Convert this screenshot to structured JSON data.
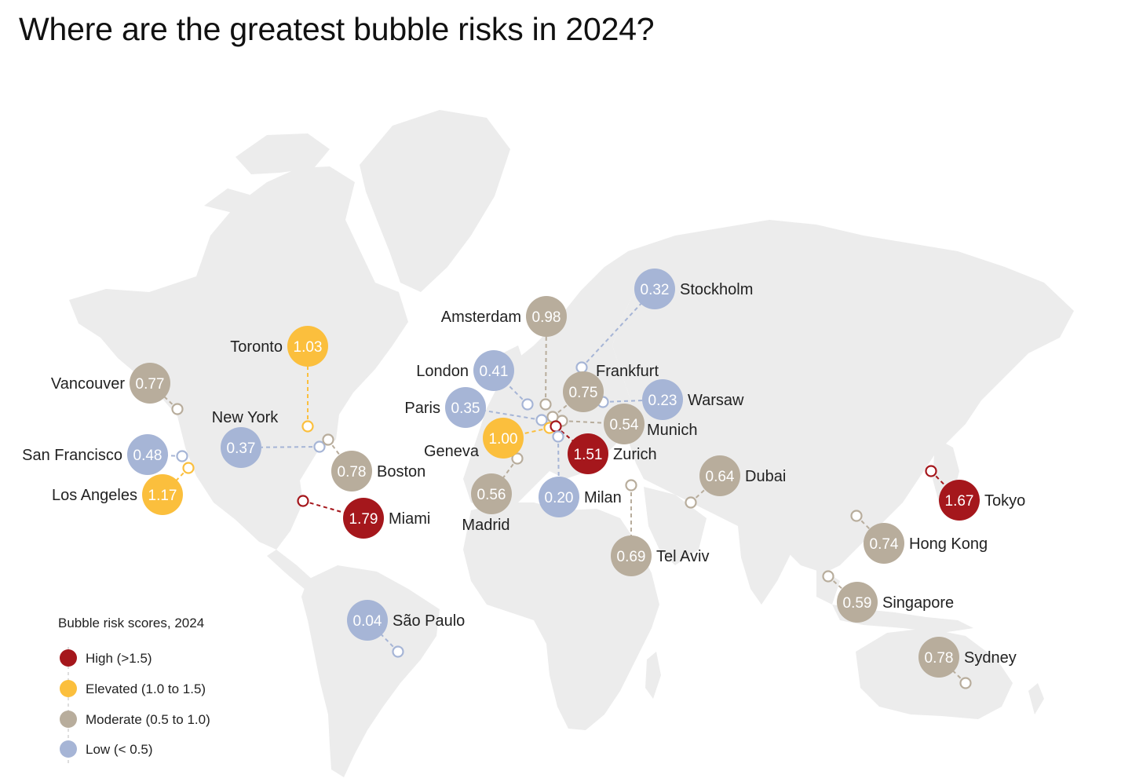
{
  "title": "Where are the greatest bubble risks in 2024?",
  "colors": {
    "high": "#a5171c",
    "elevated": "#fbbf3d",
    "moderate": "#b8ad9c",
    "low": "#a6b5d6",
    "land": "#ececec"
  },
  "legend": {
    "title": "Bubble risk scores, 2024",
    "items": [
      {
        "key": "high",
        "label": "High (>1.5)"
      },
      {
        "key": "elevated",
        "label": "Elevated (1.0 to 1.5)"
      },
      {
        "key": "moderate",
        "label": "Moderate (0.5 to 1.0)"
      },
      {
        "key": "low",
        "label": "Low (< 0.5)"
      }
    ]
  },
  "cities": [
    {
      "name": "Stockholm",
      "value": "0.32",
      "category": "low"
    },
    {
      "name": "Amsterdam",
      "value": "0.98",
      "category": "moderate"
    },
    {
      "name": "Toronto",
      "value": "1.03",
      "category": "elevated"
    },
    {
      "name": "Frankfurt",
      "value": "0.75",
      "category": "moderate"
    },
    {
      "name": "London",
      "value": "0.41",
      "category": "low"
    },
    {
      "name": "Vancouver",
      "value": "0.77",
      "category": "moderate"
    },
    {
      "name": "Warsaw",
      "value": "0.23",
      "category": "low"
    },
    {
      "name": "Paris",
      "value": "0.35",
      "category": "low"
    },
    {
      "name": "New York",
      "value": "0.37",
      "category": "low"
    },
    {
      "name": "Munich",
      "value": "0.54",
      "category": "moderate"
    },
    {
      "name": "Geneva",
      "value": "1.00",
      "category": "elevated"
    },
    {
      "name": "San Francisco",
      "value": "0.48",
      "category": "low"
    },
    {
      "name": "Zurich",
      "value": "1.51",
      "category": "high"
    },
    {
      "name": "Boston",
      "value": "0.78",
      "category": "moderate"
    },
    {
      "name": "Dubai",
      "value": "0.64",
      "category": "moderate"
    },
    {
      "name": "Los Angeles",
      "value": "1.17",
      "category": "elevated"
    },
    {
      "name": "Madrid",
      "value": "0.56",
      "category": "moderate"
    },
    {
      "name": "Milan",
      "value": "0.20",
      "category": "low"
    },
    {
      "name": "Tokyo",
      "value": "1.67",
      "category": "high"
    },
    {
      "name": "Miami",
      "value": "1.79",
      "category": "high"
    },
    {
      "name": "Hong Kong",
      "value": "0.74",
      "category": "moderate"
    },
    {
      "name": "Tel Aviv",
      "value": "0.69",
      "category": "moderate"
    },
    {
      "name": "Singapore",
      "value": "0.59",
      "category": "moderate"
    },
    {
      "name": "São Paulo",
      "value": "0.04",
      "category": "low"
    },
    {
      "name": "Sydney",
      "value": "0.78",
      "category": "moderate"
    }
  ]
}
